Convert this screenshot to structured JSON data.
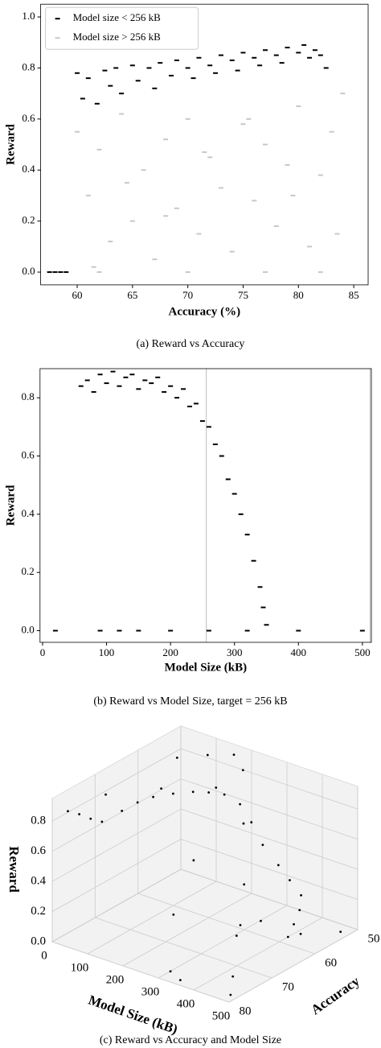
{
  "chart_data": [
    {
      "type": "scatter",
      "xlabel": "Accuracy (%)",
      "ylabel": "Reward",
      "caption": "(a) Reward vs Accuracy",
      "xlim": [
        56.7,
        86.3
      ],
      "ylim": [
        -0.05,
        1.05
      ],
      "xticks": [
        60,
        65,
        70,
        75,
        80,
        85
      ],
      "yticks": [
        {
          "value": 0,
          "label": "0.0"
        },
        0.2,
        0.4,
        0.6,
        0.8,
        {
          "value": 1,
          "label": "1.0"
        }
      ],
      "legend": "upper left",
      "series": [
        {
          "name": "Model size < 256 kB",
          "color": "#000000",
          "x": [
            60,
            60.5,
            61,
            61.8,
            62.5,
            63,
            63.5,
            64,
            65,
            65.5,
            66.5,
            67,
            67.5,
            68.5,
            69,
            70,
            70.5,
            71,
            72,
            72.5,
            73,
            74,
            74.5,
            75,
            76,
            76.5,
            77,
            78,
            78.5,
            79,
            80,
            80.5,
            81,
            81.5,
            82,
            82.5,
            57.5,
            58,
            58.5,
            59
          ],
          "values": [
            0.78,
            0.68,
            0.76,
            0.66,
            0.79,
            0.73,
            0.8,
            0.7,
            0.81,
            0.75,
            0.8,
            0.72,
            0.82,
            0.77,
            0.83,
            0.8,
            0.76,
            0.84,
            0.81,
            0.78,
            0.85,
            0.83,
            0.79,
            0.86,
            0.84,
            0.81,
            0.87,
            0.85,
            0.82,
            0.88,
            0.86,
            0.89,
            0.84,
            0.87,
            0.85,
            0.8,
            0,
            0,
            0,
            0
          ]
        },
        {
          "name": "Model size > 256 kB",
          "color": "#c8c8c8",
          "x": [
            60,
            61,
            62,
            63,
            64,
            65,
            66,
            67,
            68,
            69,
            70,
            71,
            72,
            73,
            74,
            75,
            76,
            77,
            78,
            79,
            80,
            81,
            82,
            83,
            84,
            61.5,
            64.5,
            68,
            71.5,
            75.5,
            79.5,
            83.5,
            62,
            70,
            77,
            82
          ],
          "values": [
            0.55,
            0.3,
            0.48,
            0.12,
            0.62,
            0.2,
            0.4,
            0.05,
            0.52,
            0.25,
            0.6,
            0.15,
            0.45,
            0.33,
            0.08,
            0.58,
            0.28,
            0.5,
            0.18,
            0.42,
            0.65,
            0.1,
            0.38,
            0.55,
            0.7,
            0.02,
            0.35,
            0.22,
            0.47,
            0.6,
            0.3,
            0.15,
            0,
            0,
            0,
            0
          ]
        }
      ]
    },
    {
      "type": "scatter",
      "xlabel": "Model Size (kB)",
      "ylabel": "Reward",
      "caption": "(b) Reward vs Model Size, target = 256 kB",
      "xlim": [
        -4,
        514
      ],
      "ylim": [
        -0.04,
        0.9
      ],
      "xticks": [
        0,
        100,
        200,
        300,
        400,
        500
      ],
      "yticks": [
        {
          "value": 0,
          "label": "0.0"
        },
        0.2,
        0.4,
        0.6,
        0.8
      ],
      "vlines": [
        256,
        512
      ],
      "series": [
        {
          "color": "#000000",
          "x": [
            60,
            70,
            80,
            90,
            100,
            110,
            120,
            130,
            140,
            150,
            160,
            170,
            180,
            190,
            200,
            210,
            220,
            230,
            240,
            250,
            260,
            270,
            280,
            290,
            300,
            310,
            320,
            330,
            340,
            345,
            350,
            20,
            90,
            120,
            150,
            200,
            260,
            320,
            400,
            500
          ],
          "values": [
            0.84,
            0.86,
            0.82,
            0.88,
            0.85,
            0.89,
            0.84,
            0.87,
            0.88,
            0.83,
            0.86,
            0.85,
            0.87,
            0.82,
            0.84,
            0.8,
            0.83,
            0.77,
            0.78,
            0.72,
            0.7,
            0.64,
            0.6,
            0.52,
            0.47,
            0.4,
            0.33,
            0.24,
            0.15,
            0.08,
            0.02,
            0,
            0,
            0,
            0,
            0,
            0,
            0,
            0,
            0
          ]
        }
      ]
    },
    {
      "type": "scatter3d",
      "xlabel": "Model Size (kB)",
      "ylabel": "Accuracy",
      "zlabel": "Reward",
      "caption": "(c) Reward vs Accuracy and Model Size",
      "xlim": [
        0,
        500
      ],
      "ylim": [
        50,
        80
      ],
      "zlim": [
        0,
        0.95
      ],
      "xticks": [
        0,
        100,
        200,
        300,
        400,
        500
      ],
      "yticks": [
        50,
        60,
        70,
        80
      ],
      "zticks": [
        {
          "value": 0,
          "label": "0.0"
        },
        0.2,
        0.4,
        0.6,
        0.8
      ],
      "series": [
        {
          "color": "#000000",
          "x": [
            20,
            40,
            60,
            80,
            100,
            120,
            140,
            160,
            180,
            200,
            220,
            240,
            260,
            280,
            300,
            320,
            340,
            360,
            380,
            400,
            50,
            100,
            150,
            200,
            250,
            300,
            350,
            400,
            450,
            480,
            30,
            90,
            160,
            230,
            270,
            310,
            350,
            420,
            460,
            500
          ],
          "y": [
            78,
            77,
            76,
            75,
            72,
            70,
            68,
            65,
            62,
            60,
            58,
            56,
            55,
            54,
            52,
            51,
            50,
            52,
            55,
            58,
            55,
            52,
            50,
            52,
            56,
            60,
            65,
            70,
            75,
            78,
            70,
            62,
            55,
            66,
            74,
            78,
            79,
            66,
            60,
            54
          ],
          "values": [
            0.85,
            0.83,
            0.8,
            0.78,
            0.82,
            0.86,
            0.88,
            0.87,
            0.85,
            0.83,
            0.8,
            0.72,
            0.6,
            0.45,
            0.3,
            0.2,
            0.1,
            0.05,
            0.02,
            0,
            0.86,
            0.87,
            0.88,
            0.85,
            0.6,
            0.3,
            0.15,
            0.2,
            0.05,
            0,
            0.84,
            0.8,
            0.75,
            0.5,
            0.3,
            0.02,
            0.01,
            0.25,
            0.1,
            0.05
          ]
        }
      ]
    }
  ]
}
